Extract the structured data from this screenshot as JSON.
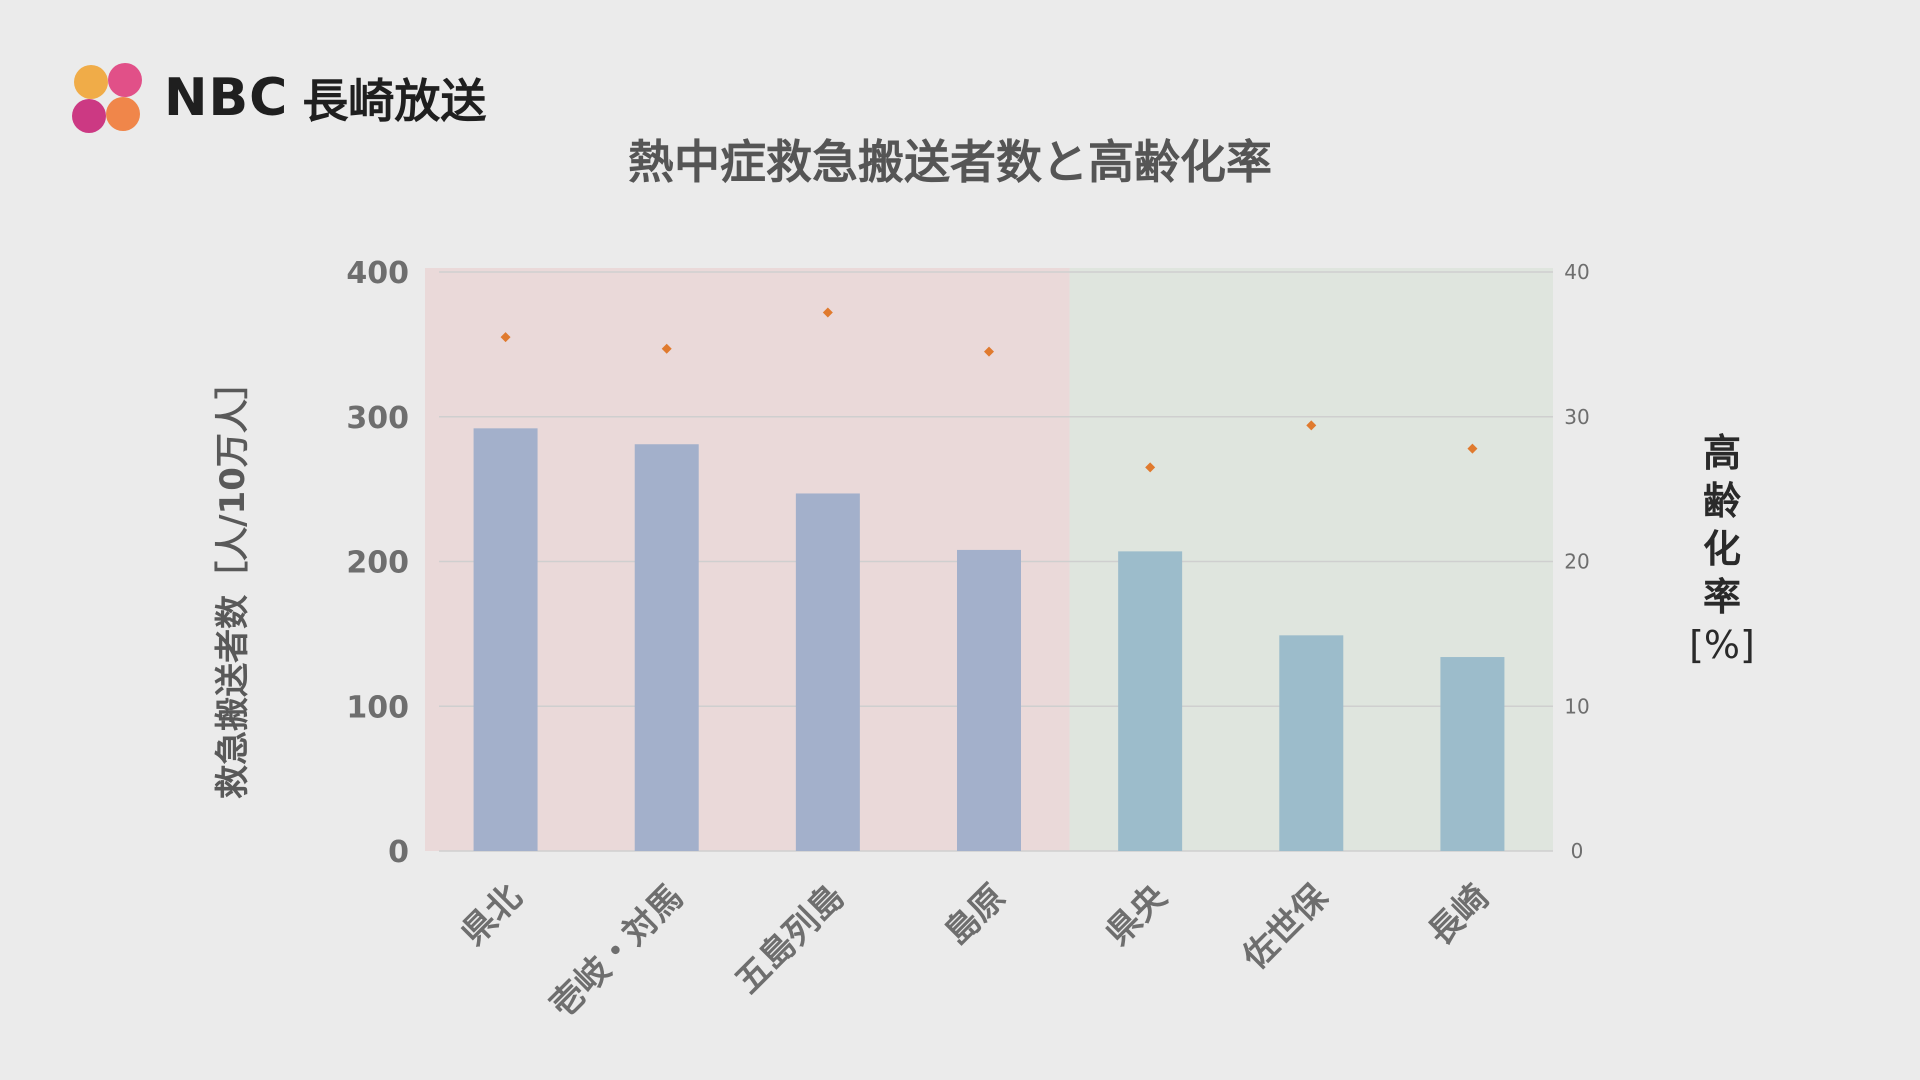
{
  "logo": {
    "text": "NBC",
    "subtitle": "長崎放送"
  },
  "colors": {
    "background": "#ebebeb",
    "region_north": "#ead9d9",
    "region_central": "#dfe5de",
    "bar_north": "#a3b0cb",
    "bar_central": "#9cbccb",
    "marker": "#e07a2e",
    "grid": "#cfcfcf",
    "axis_text": "#6e6e6e",
    "title_text": "#555555",
    "ylabel_text": "#595959",
    "y2label_text": "#2a2a2a",
    "logo_a": "#f0a63a",
    "logo_b": "#e0427f",
    "logo_c": "#c9297a",
    "logo_d": "#f07d3c"
  },
  "chart_data": {
    "type": "bar",
    "title": "熱中症救急搬送者数と高齢化率",
    "categories": [
      "県北",
      "壱岐・対馬",
      "五島列島",
      "島原",
      "県央",
      "佐世保",
      "長崎"
    ],
    "series": [
      {
        "type": "bar",
        "axis": "left",
        "values": [
          292,
          281,
          247,
          208,
          207,
          149,
          134
        ]
      },
      {
        "type": "scatter",
        "axis": "right",
        "values": [
          35.5,
          34.7,
          37.2,
          34.5,
          26.5,
          29.4,
          27.8
        ]
      }
    ],
    "ylabel": "救急搬送者数［人/10万人］",
    "ylim": [
      0,
      400
    ],
    "yticks": [
      0,
      100,
      200,
      300,
      400
    ],
    "y2label": "高齢化率[%]",
    "y2label_lines": [
      "高",
      "齢",
      "化",
      "率",
      "[%]"
    ],
    "y2lim": [
      0,
      40
    ],
    "y2ticks": [
      0,
      10,
      20,
      30,
      40
    ],
    "highlight_regions": [
      {
        "from_category": 0,
        "to_category": 3,
        "color": "#ead9d9"
      },
      {
        "from_category": 4,
        "to_category": 6,
        "color": "#dfe5de"
      }
    ],
    "grid": true
  }
}
